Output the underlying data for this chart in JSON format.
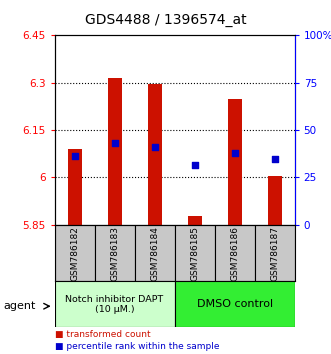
{
  "title": "GDS4488 / 1396574_at",
  "samples": [
    "GSM786182",
    "GSM786183",
    "GSM786184",
    "GSM786185",
    "GSM786186",
    "GSM786187"
  ],
  "bar_bottoms": [
    5.85,
    5.85,
    5.85,
    5.85,
    5.85,
    5.85
  ],
  "bar_tops": [
    6.09,
    6.315,
    6.295,
    5.877,
    6.248,
    6.005
  ],
  "percentile_values": [
    6.068,
    6.108,
    6.098,
    6.038,
    6.078,
    6.058
  ],
  "ylim_left": [
    5.85,
    6.45
  ],
  "ylim_right": [
    0,
    100
  ],
  "yticks_left": [
    5.85,
    6.0,
    6.15,
    6.3,
    6.45
  ],
  "ytick_labels_left": [
    "5.85",
    "6",
    "6.15",
    "6.3",
    "6.45"
  ],
  "yticks_right": [
    0,
    25,
    50,
    75,
    100
  ],
  "ytick_labels_right": [
    "0",
    "25",
    "50",
    "75",
    "100%"
  ],
  "bar_color": "#CC1100",
  "dot_color": "#0000CC",
  "group1_label": "Notch inhibitor DAPT\n(10 μM.)",
  "group2_label": "DMSO control",
  "group1_color": "#CCFFCC",
  "group2_color": "#33EE33",
  "legend_red": "transformed count",
  "legend_blue": "percentile rank within the sample",
  "agent_label": "agent",
  "tick_area_bg": "#C8C8C8",
  "title_fontsize": 10,
  "tick_fontsize": 7.5,
  "label_fontsize": 6.5,
  "bar_width": 0.35,
  "dot_size": 18
}
